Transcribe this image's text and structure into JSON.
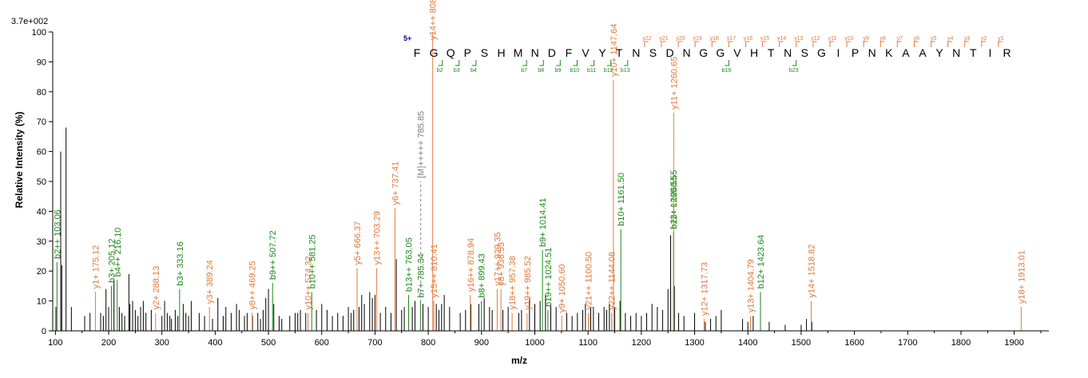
{
  "chart_data": {
    "type": "bar",
    "xlabel": "m/z",
    "ylabel": "Relative   Intensity (%)",
    "max_intensity_label": "3.7e+002",
    "xlim": [
      95,
      1965
    ],
    "ylim": [
      0,
      100
    ],
    "xticks": [
      100,
      200,
      300,
      400,
      500,
      600,
      700,
      800,
      900,
      1000,
      1100,
      1200,
      1300,
      1400,
      1500,
      1600,
      1700,
      1800,
      1900
    ],
    "yticks": [
      0,
      10,
      20,
      30,
      40,
      50,
      60,
      70,
      80,
      90,
      100
    ],
    "colors": {
      "y_ion": "#e07a3c",
      "b_ion": "#1a8a1a",
      "precursor": "#808080",
      "unassigned": "#000000",
      "charge": "#00008b"
    },
    "precursor_charge": "5+",
    "sequence": [
      "F",
      "G",
      "Q",
      "P",
      "S",
      "H",
      "M",
      "N",
      "D",
      "F",
      "V",
      "Y",
      "T",
      "N",
      "S",
      "D",
      "N",
      "G",
      "G",
      "V",
      "H",
      "T",
      "N",
      "S",
      "G",
      "I",
      "P",
      "N",
      "K",
      "A",
      "A",
      "Y",
      "N",
      "T",
      "I",
      "R"
    ],
    "y_ion_markers": [
      "y22",
      "y21",
      "y20",
      "y19",
      "y18",
      "y17",
      "y16",
      "y15",
      "y14",
      "y13",
      "y12",
      "y11",
      "y10",
      "y9",
      "y8",
      "y7",
      "y6",
      "y5",
      "y4",
      "y3",
      "y2",
      "y1"
    ],
    "b_ion_markers": [
      "b2",
      "b3",
      "b4",
      "b7",
      "b8",
      "b9",
      "b10",
      "b11",
      "b12",
      "b13",
      "b19",
      "b23"
    ],
    "labeled_peaks": [
      {
        "mz": 103.06,
        "intensity": 23,
        "type": "b",
        "label": "b2++ 103.06"
      },
      {
        "mz": 175.12,
        "intensity": 13,
        "type": "y",
        "label": "y1+ 175.12"
      },
      {
        "mz": 205.12,
        "intensity": 15,
        "type": "b",
        "label": "b3+ 205.12"
      },
      {
        "mz": 216.1,
        "intensity": 17,
        "type": "b",
        "label": "b4++ 216.10"
      },
      {
        "mz": 288.13,
        "intensity": 6,
        "type": "y",
        "label": "y2+ 288.13"
      },
      {
        "mz": 333.16,
        "intensity": 14,
        "type": "b",
        "label": "b3+ 333.16"
      },
      {
        "mz": 389.24,
        "intensity": 8,
        "type": "y",
        "label": "y3+ 389.24"
      },
      {
        "mz": 469.25,
        "intensity": 6,
        "type": "y",
        "label": "y8++ 469.25"
      },
      {
        "mz": 507.72,
        "intensity": 16,
        "type": "b",
        "label": "b9++ 507.72"
      },
      {
        "mz": 574.32,
        "intensity": 6,
        "type": "y",
        "label": "y10++ 574.32"
      },
      {
        "mz": 581.25,
        "intensity": 13,
        "type": "b",
        "label": "b10++ 581.25"
      },
      {
        "mz": 666.37,
        "intensity": 21,
        "type": "y",
        "label": "y5+ 666.37"
      },
      {
        "mz": 703.29,
        "intensity": 21,
        "type": "y",
        "label": "y13++ 703.29"
      },
      {
        "mz": 737.41,
        "intensity": 41,
        "type": "y",
        "label": "y6+ 737.41"
      },
      {
        "mz": 763.05,
        "intensity": 12,
        "type": "b",
        "label": "b13++ 763.05"
      },
      {
        "mz": 785.34,
        "intensity": 10,
        "type": "b",
        "label": "b7+ 785.34"
      },
      {
        "mz": 785.85,
        "intensity": 50,
        "type": "p",
        "label": "[M]+++++ 785.85"
      },
      {
        "mz": 808.4,
        "intensity": 100,
        "type": "y",
        "label": "y14++ 808.4"
      },
      {
        "mz": 810.41,
        "intensity": 10,
        "type": "y",
        "label": "y15++ 810.41"
      },
      {
        "mz": 878.94,
        "intensity": 12,
        "type": "y",
        "label": "y16++ 878.94"
      },
      {
        "mz": 899.43,
        "intensity": 10,
        "type": "b",
        "label": "b8+ 899.43"
      },
      {
        "mz": 929.35,
        "intensity": 14,
        "type": "y",
        "label": "y17++ 929.35"
      },
      {
        "mz": 936.53,
        "intensity": 14,
        "type": "y",
        "label": "y8+ 936.53"
      },
      {
        "mz": 957.38,
        "intensity": 6,
        "type": "y",
        "label": "y18++ 957.38"
      },
      {
        "mz": 985.52,
        "intensity": 6,
        "type": "y",
        "label": "y19++ 985.52"
      },
      {
        "mz": 1014.41,
        "intensity": 27,
        "type": "b",
        "label": "b9+ 1014.41"
      },
      {
        "mz": 1024.51,
        "intensity": 7,
        "type": "b",
        "label": "b19++ 1024.51"
      },
      {
        "mz": 1050.6,
        "intensity": 5,
        "type": "y",
        "label": "y9+ 1050.60"
      },
      {
        "mz": 1100.5,
        "intensity": 6,
        "type": "y",
        "label": "y21++ 1100.50"
      },
      {
        "mz": 1144.08,
        "intensity": 6,
        "type": "y",
        "label": "y22++ 1144.08"
      },
      {
        "mz": 1147.64,
        "intensity": 84,
        "type": "y",
        "label": "y10+ 1147.64"
      },
      {
        "mz": 1161.5,
        "intensity": 34,
        "type": "b",
        "label": "b10+ 1161.50"
      },
      {
        "mz": 1260.55,
        "intensity": 33,
        "type": "b",
        "label": "b11+ 1260.55"
      },
      {
        "mz": 1260.55,
        "intensity": 33,
        "type": "b",
        "label": "b23++ 1260.55"
      },
      {
        "mz": 1260.65,
        "intensity": 73,
        "type": "y",
        "label": "y11+ 1260.65"
      },
      {
        "mz": 1317.73,
        "intensity": 4,
        "type": "y",
        "label": "y12+ 1317.73"
      },
      {
        "mz": 1404.79,
        "intensity": 5,
        "type": "y",
        "label": "y13+ 1404.79"
      },
      {
        "mz": 1423.64,
        "intensity": 13,
        "type": "b",
        "label": "b12+ 1423.64"
      },
      {
        "mz": 1518.82,
        "intensity": 10,
        "type": "y",
        "label": "y14+ 1518.82"
      },
      {
        "mz": 1913.01,
        "intensity": 8,
        "type": "y",
        "label": "y18+ 1913.01"
      }
    ],
    "unlabeled_peaks": [
      [
        101,
        8
      ],
      [
        110,
        60
      ],
      [
        112,
        22
      ],
      [
        120,
        68
      ],
      [
        130,
        8
      ],
      [
        155,
        5
      ],
      [
        165,
        6
      ],
      [
        185,
        6
      ],
      [
        190,
        5
      ],
      [
        195,
        14
      ],
      [
        200,
        8
      ],
      [
        210,
        17
      ],
      [
        220,
        8
      ],
      [
        225,
        6
      ],
      [
        230,
        5
      ],
      [
        238,
        19
      ],
      [
        240,
        9
      ],
      [
        245,
        10
      ],
      [
        250,
        7
      ],
      [
        255,
        5
      ],
      [
        260,
        8
      ],
      [
        265,
        10
      ],
      [
        270,
        6
      ],
      [
        280,
        7
      ],
      [
        300,
        5
      ],
      [
        305,
        10
      ],
      [
        310,
        6
      ],
      [
        315,
        5
      ],
      [
        318,
        4
      ],
      [
        325,
        7
      ],
      [
        330,
        5
      ],
      [
        340,
        9
      ],
      [
        345,
        6
      ],
      [
        350,
        5
      ],
      [
        355,
        10
      ],
      [
        370,
        6
      ],
      [
        380,
        5
      ],
      [
        395,
        4
      ],
      [
        405,
        11
      ],
      [
        415,
        5
      ],
      [
        420,
        8
      ],
      [
        430,
        6
      ],
      [
        440,
        9
      ],
      [
        445,
        7
      ],
      [
        455,
        5
      ],
      [
        460,
        6
      ],
      [
        470,
        5
      ],
      [
        480,
        6
      ],
      [
        485,
        4
      ],
      [
        490,
        7
      ],
      [
        495,
        11
      ],
      [
        500,
        14
      ],
      [
        510,
        9
      ],
      [
        520,
        5
      ],
      [
        525,
        4
      ],
      [
        540,
        5
      ],
      [
        550,
        6
      ],
      [
        555,
        6
      ],
      [
        560,
        7
      ],
      [
        570,
        6
      ],
      [
        590,
        7
      ],
      [
        600,
        9
      ],
      [
        610,
        7
      ],
      [
        620,
        5
      ],
      [
        630,
        6
      ],
      [
        640,
        5
      ],
      [
        650,
        8
      ],
      [
        655,
        6
      ],
      [
        660,
        7
      ],
      [
        670,
        8
      ],
      [
        675,
        12
      ],
      [
        680,
        9
      ],
      [
        690,
        13
      ],
      [
        695,
        11
      ],
      [
        700,
        12
      ],
      [
        710,
        6
      ],
      [
        720,
        8
      ],
      [
        730,
        6
      ],
      [
        740,
        24
      ],
      [
        750,
        7
      ],
      [
        755,
        8
      ],
      [
        770,
        8
      ],
      [
        775,
        10
      ],
      [
        790,
        9
      ],
      [
        800,
        8
      ],
      [
        815,
        9
      ],
      [
        820,
        7
      ],
      [
        825,
        9
      ],
      [
        830,
        12
      ],
      [
        840,
        8
      ],
      [
        860,
        6
      ],
      [
        870,
        7
      ],
      [
        880,
        9
      ],
      [
        895,
        9
      ],
      [
        905,
        11
      ],
      [
        915,
        8
      ],
      [
        920,
        7
      ],
      [
        940,
        7
      ],
      [
        950,
        8
      ],
      [
        970,
        6
      ],
      [
        975,
        7
      ],
      [
        990,
        11
      ],
      [
        1000,
        9
      ],
      [
        1010,
        10
      ],
      [
        1020,
        12
      ],
      [
        1030,
        9
      ],
      [
        1040,
        8
      ],
      [
        1060,
        6
      ],
      [
        1070,
        5
      ],
      [
        1080,
        6
      ],
      [
        1090,
        7
      ],
      [
        1095,
        9
      ],
      [
        1105,
        8
      ],
      [
        1110,
        8
      ],
      [
        1120,
        6
      ],
      [
        1130,
        8
      ],
      [
        1135,
        7
      ],
      [
        1140,
        9
      ],
      [
        1150,
        8
      ],
      [
        1160,
        10
      ],
      [
        1170,
        6
      ],
      [
        1180,
        5
      ],
      [
        1190,
        6
      ],
      [
        1200,
        5
      ],
      [
        1210,
        6
      ],
      [
        1220,
        9
      ],
      [
        1230,
        8
      ],
      [
        1240,
        7
      ],
      [
        1250,
        14
      ],
      [
        1255,
        32
      ],
      [
        1262,
        15
      ],
      [
        1270,
        6
      ],
      [
        1280,
        5
      ],
      [
        1300,
        6
      ],
      [
        1320,
        3
      ],
      [
        1330,
        4
      ],
      [
        1340,
        5
      ],
      [
        1350,
        7
      ],
      [
        1390,
        4
      ],
      [
        1400,
        3
      ],
      [
        1410,
        5
      ],
      [
        1440,
        3
      ],
      [
        1470,
        2
      ],
      [
        1500,
        2
      ],
      [
        1510,
        4
      ],
      [
        1520,
        3
      ]
    ]
  }
}
